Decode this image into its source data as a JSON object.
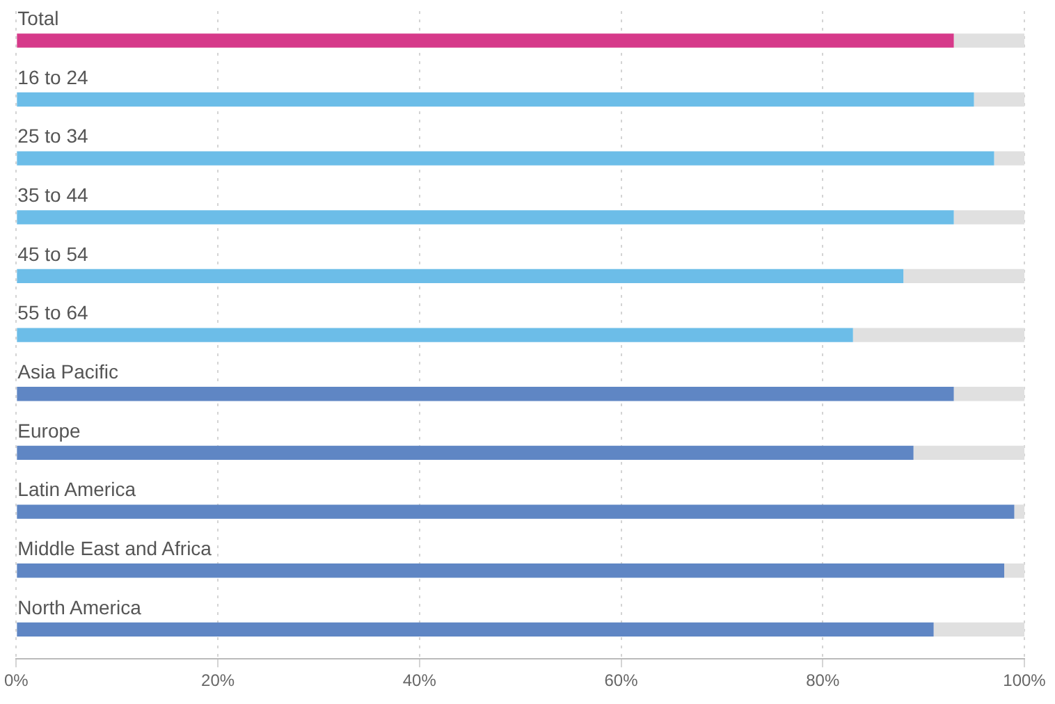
{
  "chart_data": {
    "type": "bar",
    "orientation": "horizontal",
    "categories": [
      "Total",
      "16 to 24",
      "25 to 34",
      "35 to 44",
      "45 to 54",
      "55 to 64",
      "Asia Pacific",
      "Europe",
      "Latin America",
      "Middle East and Africa",
      "North America"
    ],
    "series": [
      {
        "colors": [
          "#d63a8a",
          "#6cbde8",
          "#6cbde8",
          "#6cbde8",
          "#6cbde8",
          "#6cbde8",
          "#5f86c4",
          "#5f86c4",
          "#5f86c4",
          "#5f86c4",
          "#5f86c4"
        ],
        "values": [
          93,
          95,
          97,
          93,
          88,
          83,
          93,
          89,
          99,
          98,
          91
        ]
      },
      {
        "color": "#e0e0e0",
        "values": [
          7,
          5,
          3,
          7,
          12,
          17,
          7,
          11,
          1,
          2,
          9
        ]
      }
    ],
    "stacked": true,
    "xlim": [
      0,
      100
    ],
    "xticks": [
      {
        "value": 0,
        "label": "0%"
      },
      {
        "value": 20,
        "label": "20%"
      },
      {
        "value": 40,
        "label": "40%"
      },
      {
        "value": 60,
        "label": "60%"
      },
      {
        "value": 80,
        "label": "80%"
      },
      {
        "value": 100,
        "label": "100%"
      }
    ],
    "grid": "x",
    "legend": false
  }
}
